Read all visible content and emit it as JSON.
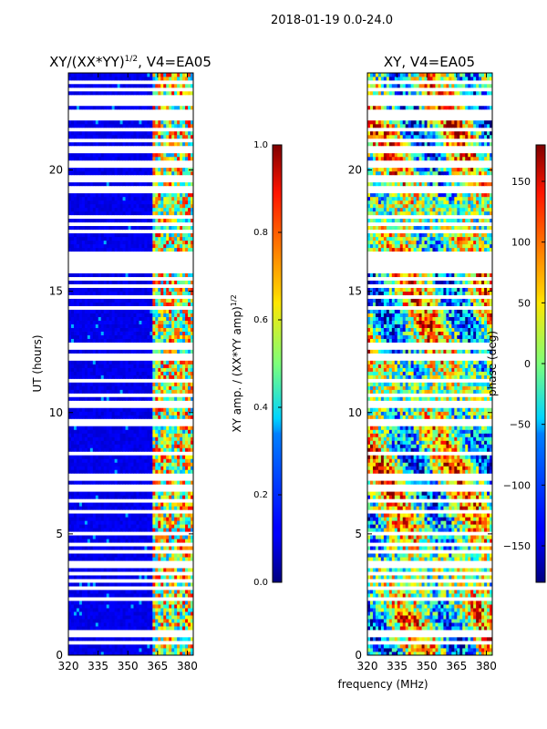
{
  "figure_title": "2018-01-19 0.0-24.0",
  "xlabel_shared": "frequency (MHz)",
  "chart_data": [
    {
      "type": "heatmap",
      "title": "XY/(XX*YY)^1/2, V4=EA05",
      "title_main": "XY/(XX*YY)",
      "title_exp": "1/2",
      "title_suffix": ", V4=EA05",
      "xlabel": "",
      "ylabel": "UT (hours)",
      "xlim": [
        320,
        383
      ],
      "ylim": [
        0,
        24
      ],
      "xticks": [
        320,
        335,
        350,
        365,
        380
      ],
      "yticks": [
        0,
        5,
        10,
        15,
        20
      ],
      "colormap": "jet",
      "colorbar": {
        "label_main": "XY amp. / (XX*YY amp)",
        "label_exp": "1/2",
        "range": [
          0.0,
          1.0
        ],
        "ticks": [
          "0.0",
          "0.2",
          "0.4",
          "0.6",
          "0.8",
          "1.0"
        ]
      },
      "description": "amplitude ratio; mostly low (~0.1) below 362 MHz, higher (0.4-0.9) mottled structure between 362-382 MHz; white horizontal gaps = flagged data"
    },
    {
      "type": "heatmap",
      "title": "XY, V4=EA05",
      "xlabel": "frequency (MHz)",
      "ylabel": "",
      "xlim": [
        320,
        383
      ],
      "ylim": [
        0,
        24
      ],
      "xticks": [
        320,
        335,
        350,
        365,
        380
      ],
      "yticks": [
        0,
        5,
        10,
        15,
        20
      ],
      "colormap": "jet",
      "colorbar": {
        "label": "phase (deg)",
        "range": [
          -180,
          180
        ],
        "ticks": [
          "150",
          "100",
          "50",
          "0",
          "−50",
          "−100",
          "−150"
        ],
        "tick_values": [
          150,
          100,
          50,
          0,
          -50,
          -100,
          -150
        ]
      },
      "description": "XY phase; noisy mix of all phases across band with flagged gaps"
    }
  ],
  "colors": {
    "jet_low": "#00007f",
    "jet_mid": "#7fff7f",
    "jet_high": "#7f0000"
  }
}
